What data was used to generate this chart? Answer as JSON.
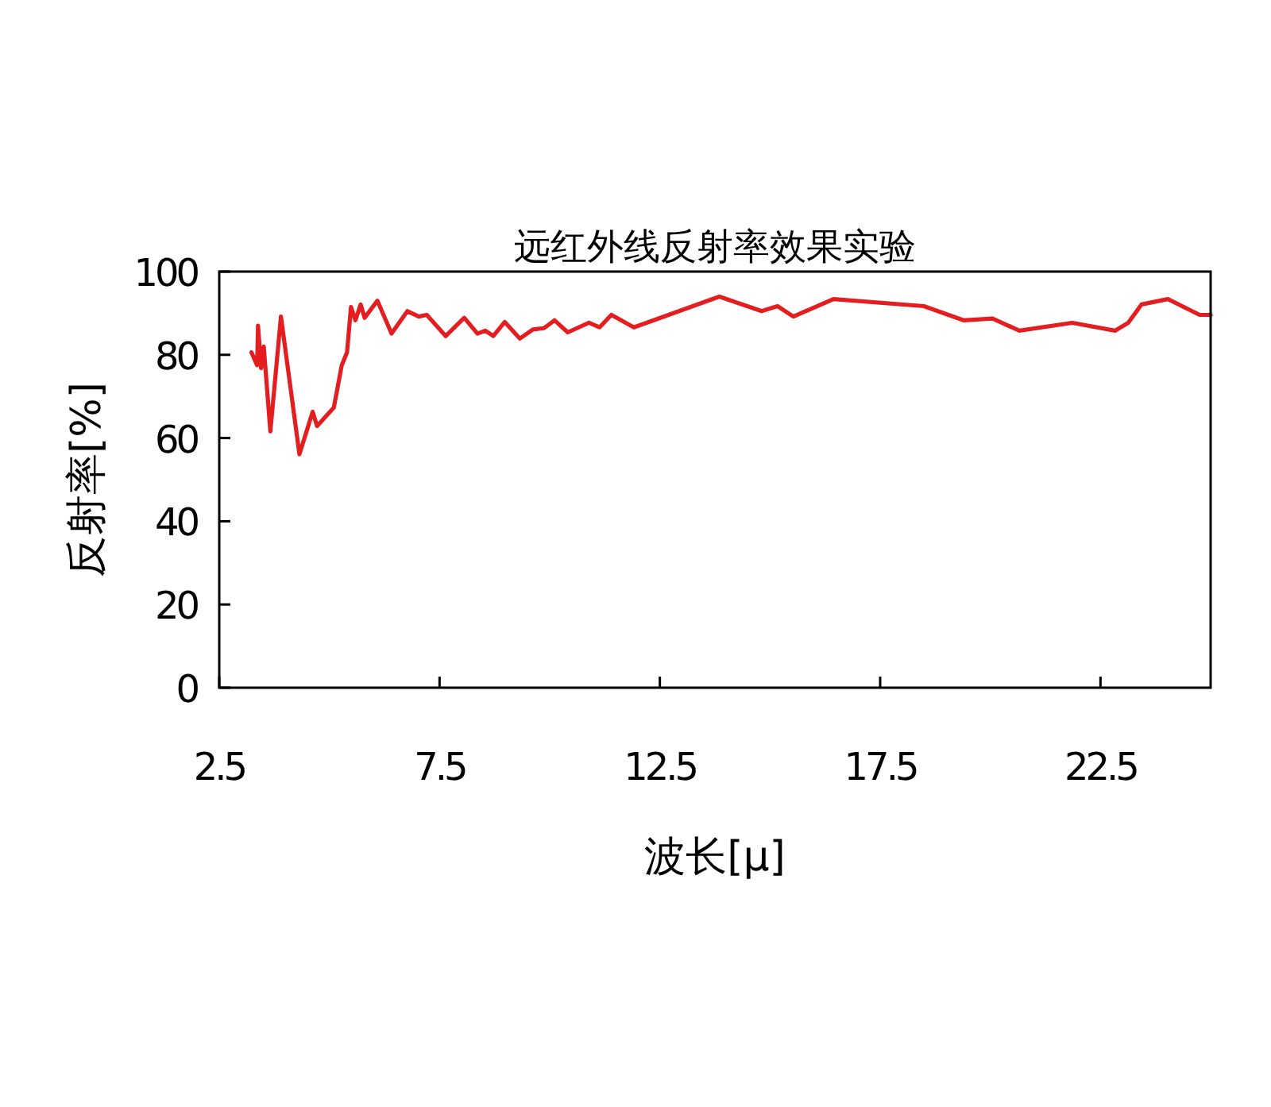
{
  "chart_data": {
    "type": "line",
    "title": "远红外线反射率效果实验",
    "xlabel": "波长[μ]",
    "ylabel": "反射率[%]",
    "xlim": [
      2.5,
      25
    ],
    "ylim": [
      0,
      100
    ],
    "xticks": [
      2.5,
      7.5,
      12.5,
      17.5,
      22.5
    ],
    "yticks": [
      0,
      20,
      40,
      60,
      80,
      100
    ],
    "grid": false,
    "marker": "none",
    "line_style": "solid",
    "series": [
      {
        "color": "#e41e20",
        "x": [
          3.23,
          3.36,
          3.38,
          3.45,
          3.51,
          3.66,
          3.9,
          4.32,
          4.62,
          4.72,
          5.1,
          5.28,
          5.4,
          5.49,
          5.59,
          5.71,
          5.8,
          6.09,
          6.41,
          6.77,
          7.03,
          7.21,
          7.64,
          8.06,
          8.36,
          8.54,
          8.72,
          8.98,
          9.32,
          9.62,
          9.87,
          10.11,
          10.41,
          10.89,
          11.13,
          11.4,
          11.91,
          13.85,
          14.81,
          15.17,
          15.53,
          16.44,
          18.49,
          19.39,
          20.05,
          20.66,
          21.86,
          22.83,
          23.13,
          23.43,
          24.03,
          24.75,
          25
        ],
        "values": [
          80.6,
          77.5,
          87,
          76.8,
          82,
          61.6,
          89.2,
          56.1,
          66.3,
          62.9,
          67.3,
          77.5,
          80.6,
          91.5,
          88.3,
          92.1,
          88.9,
          93,
          85.1,
          90.5,
          89.2,
          89.6,
          84.5,
          88.9,
          85.1,
          85.8,
          84.5,
          87.9,
          83.9,
          86.1,
          86.4,
          88.3,
          85.4,
          87.7,
          86.6,
          89.6,
          86.6,
          94,
          90.5,
          91.7,
          89.2,
          93.4,
          91.7,
          88.3,
          88.7,
          85.8,
          87.7,
          85.8,
          87.7,
          92.1,
          93.4,
          89.6,
          89.6
        ]
      }
    ]
  }
}
